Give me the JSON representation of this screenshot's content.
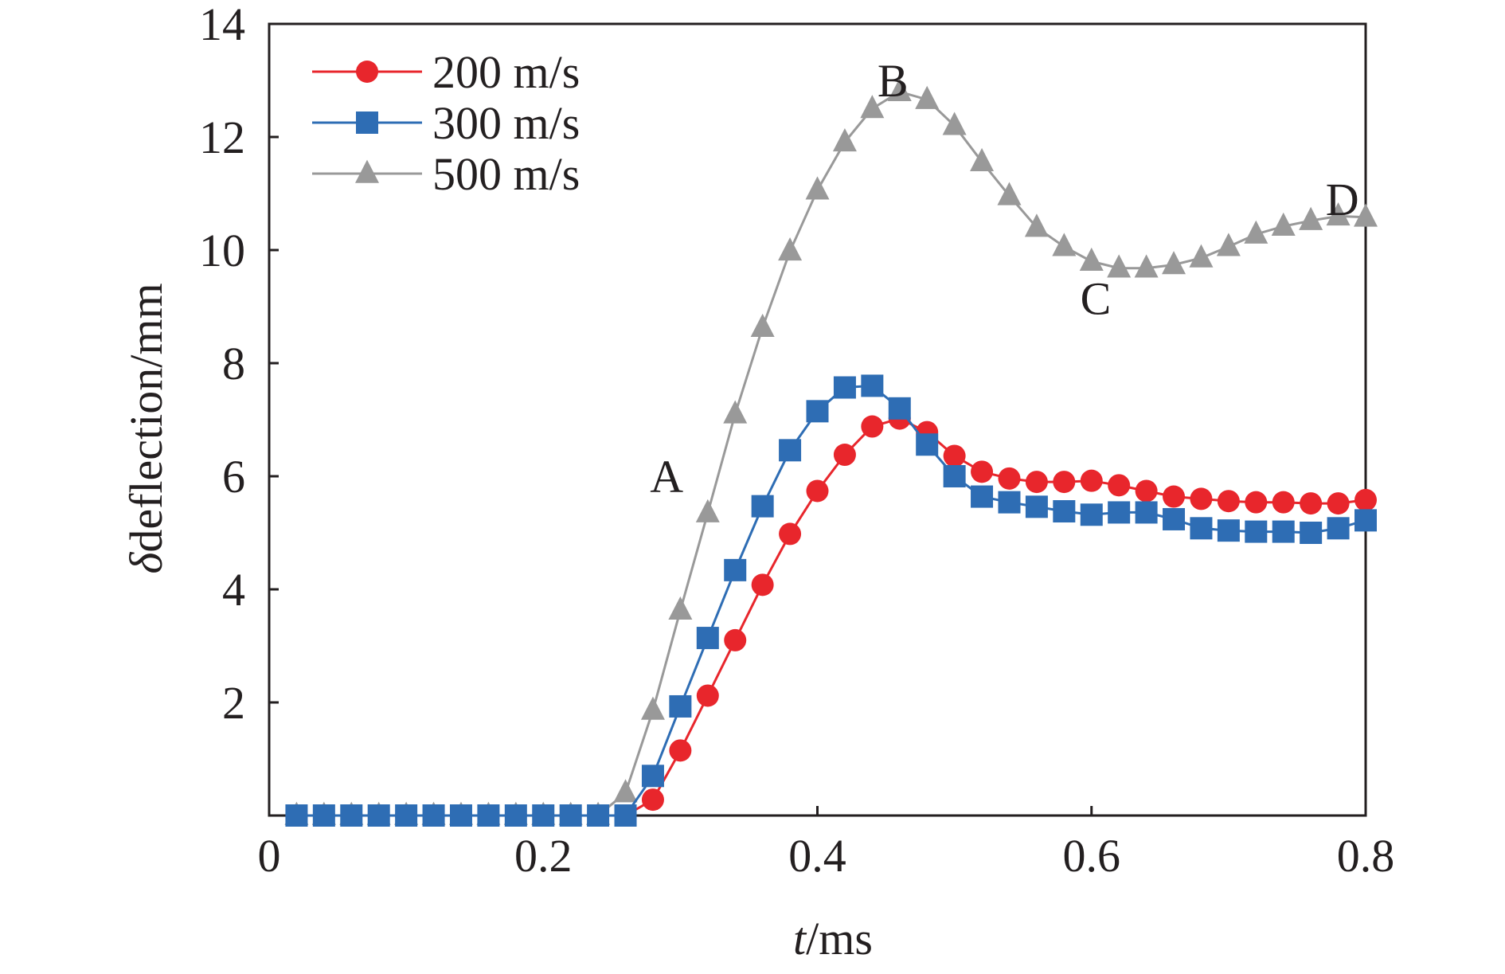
{
  "chart_data": {
    "type": "line",
    "title": "",
    "xlabel": {
      "italic": "t",
      "rest": "/ms"
    },
    "ylabel": {
      "italic": "δ",
      "rest": "deflection/mm"
    },
    "xlim": [
      0,
      0.8
    ],
    "ylim": [
      0,
      14
    ],
    "xticks": [
      0,
      0.2,
      0.4,
      0.6,
      0.8
    ],
    "xtick_labels": [
      "0",
      "0.2",
      "0.4",
      "0.6",
      "0.8"
    ],
    "yticks": [
      2,
      4,
      6,
      8,
      10,
      12,
      14
    ],
    "ytick_labels": [
      "2",
      "4",
      "6",
      "8",
      "10",
      "12",
      "14"
    ],
    "grid": false,
    "legend_position": "top-left",
    "x": [
      0.02,
      0.04,
      0.06,
      0.08,
      0.1,
      0.12,
      0.14,
      0.16,
      0.18,
      0.2,
      0.22,
      0.24,
      0.26,
      0.28,
      0.3,
      0.32,
      0.34,
      0.36,
      0.38,
      0.4,
      0.42,
      0.44,
      0.46,
      0.48,
      0.5,
      0.52,
      0.54,
      0.56,
      0.58,
      0.6,
      0.62,
      0.64,
      0.66,
      0.68,
      0.7,
      0.72,
      0.74,
      0.76,
      0.78,
      0.8
    ],
    "series": [
      {
        "name": "200 m/s",
        "color": "#e8262c",
        "marker": "circle",
        "values": [
          0,
          0,
          0,
          0,
          0,
          0,
          0,
          0,
          0,
          0,
          0,
          0,
          0,
          0.28,
          1.15,
          2.12,
          3.1,
          4.08,
          4.98,
          5.74,
          6.38,
          6.88,
          7.02,
          6.78,
          6.36,
          6.08,
          5.96,
          5.9,
          5.9,
          5.92,
          5.84,
          5.74,
          5.64,
          5.6,
          5.56,
          5.54,
          5.54,
          5.52,
          5.52,
          5.58
        ]
      },
      {
        "name": "300 m/s",
        "color": "#2e6db4",
        "marker": "square",
        "values": [
          0,
          0,
          0,
          0,
          0,
          0,
          0,
          0,
          0,
          0,
          0,
          0,
          0,
          0.7,
          1.93,
          3.14,
          4.34,
          5.47,
          6.46,
          7.15,
          7.57,
          7.6,
          7.2,
          6.56,
          6.0,
          5.64,
          5.54,
          5.46,
          5.38,
          5.32,
          5.36,
          5.36,
          5.24,
          5.08,
          5.04,
          5.02,
          5.02,
          5.0,
          5.08,
          5.22
        ]
      },
      {
        "name": "500 m/s",
        "color": "#999999",
        "marker": "triangle",
        "values": [
          0,
          0,
          0,
          0,
          0,
          0,
          0,
          0,
          0,
          0,
          0,
          0,
          0.4,
          1.86,
          3.63,
          5.35,
          7.1,
          8.63,
          9.98,
          11.06,
          11.91,
          12.5,
          12.8,
          12.66,
          12.2,
          11.56,
          10.96,
          10.4,
          10.06,
          9.8,
          9.68,
          9.68,
          9.74,
          9.86,
          10.06,
          10.28,
          10.42,
          10.52,
          10.6,
          10.58
        ]
      }
    ],
    "annotations": [
      {
        "text": "A",
        "x": 0.29,
        "y": 6.0
      },
      {
        "text": "B",
        "x": 0.455,
        "y": 13.0
      },
      {
        "text": "C",
        "x": 0.603,
        "y": 9.15
      },
      {
        "text": "D",
        "x": 0.783,
        "y": 10.9
      }
    ]
  }
}
